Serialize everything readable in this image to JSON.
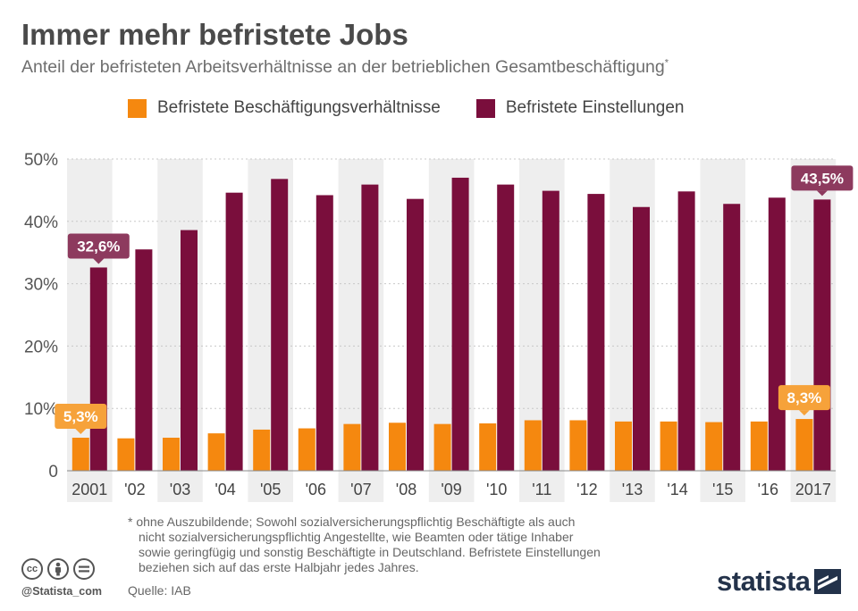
{
  "header": {
    "title": "Immer mehr befristete Jobs",
    "subtitle": "Anteil der befristeten Arbeitsverhältnisse an der betrieblichen Gesamtbeschäftigung",
    "subtitle_mark": "*"
  },
  "legend": {
    "series_a": "Befristete Beschäftigungsverhältnisse",
    "series_b": "Befristete Einstellungen"
  },
  "colors": {
    "orange": "#f5880f",
    "orange_label": "#f6a23a",
    "maroon": "#7a0e3c",
    "maroon_label": "#8d3a5e",
    "band": "#eeeeee",
    "brand": "#23324a"
  },
  "chart_data": {
    "type": "bar",
    "title": "Immer mehr befristete Jobs",
    "categories": [
      "2001",
      "'02",
      "'03",
      "'04",
      "'05",
      "'06",
      "'07",
      "'08",
      "'09",
      "'10",
      "'11",
      "'12",
      "'13",
      "'14",
      "'15",
      "'16",
      "2017"
    ],
    "series": [
      {
        "name": "Befristete Beschäftigungsverhältnisse",
        "values": [
          5.3,
          5.2,
          5.3,
          6.0,
          6.6,
          6.8,
          7.5,
          7.7,
          7.5,
          7.6,
          8.1,
          8.1,
          7.9,
          7.9,
          7.8,
          7.9,
          8.3
        ]
      },
      {
        "name": "Befristete Einstellungen",
        "values": [
          32.6,
          35.5,
          38.6,
          44.6,
          46.8,
          44.2,
          45.9,
          43.6,
          47.0,
          45.9,
          44.9,
          44.4,
          42.3,
          44.8,
          42.8,
          43.8,
          43.5
        ]
      }
    ],
    "y_ticks": [
      0,
      10,
      20,
      30,
      40,
      50
    ],
    "y_tick_labels": [
      "0",
      "10%",
      "20%",
      "30%",
      "40%",
      "50%"
    ],
    "ylim": [
      0,
      50
    ],
    "callouts": [
      {
        "series": 0,
        "index": 0,
        "text": "5,3%"
      },
      {
        "series": 0,
        "index": 16,
        "text": "8,3%"
      },
      {
        "series": 1,
        "index": 0,
        "text": "32,6%"
      },
      {
        "series": 1,
        "index": 16,
        "text": "43,5%"
      }
    ],
    "legend_position": "top"
  },
  "footnote": {
    "lines": [
      "* ohne Auszubildende; Sowohl sozialversicherungspflichtig Beschäftigte als auch",
      "nicht sozialversicherungspflichtig Angestellte, wie Beamten oder tätige Inhaber",
      "sowie geringfügig und sonstig Beschäftigte in Deutschland. Befristete Einstellungen",
      "beziehen sich auf das erste Halbjahr jedes Jahres."
    ],
    "source": "Quelle: IAB"
  },
  "footer": {
    "handle": "@Statista_com",
    "brand": "statista",
    "license_icons": [
      "cc-icon",
      "by-icon",
      "nd-icon"
    ],
    "cc_text": "cc"
  }
}
